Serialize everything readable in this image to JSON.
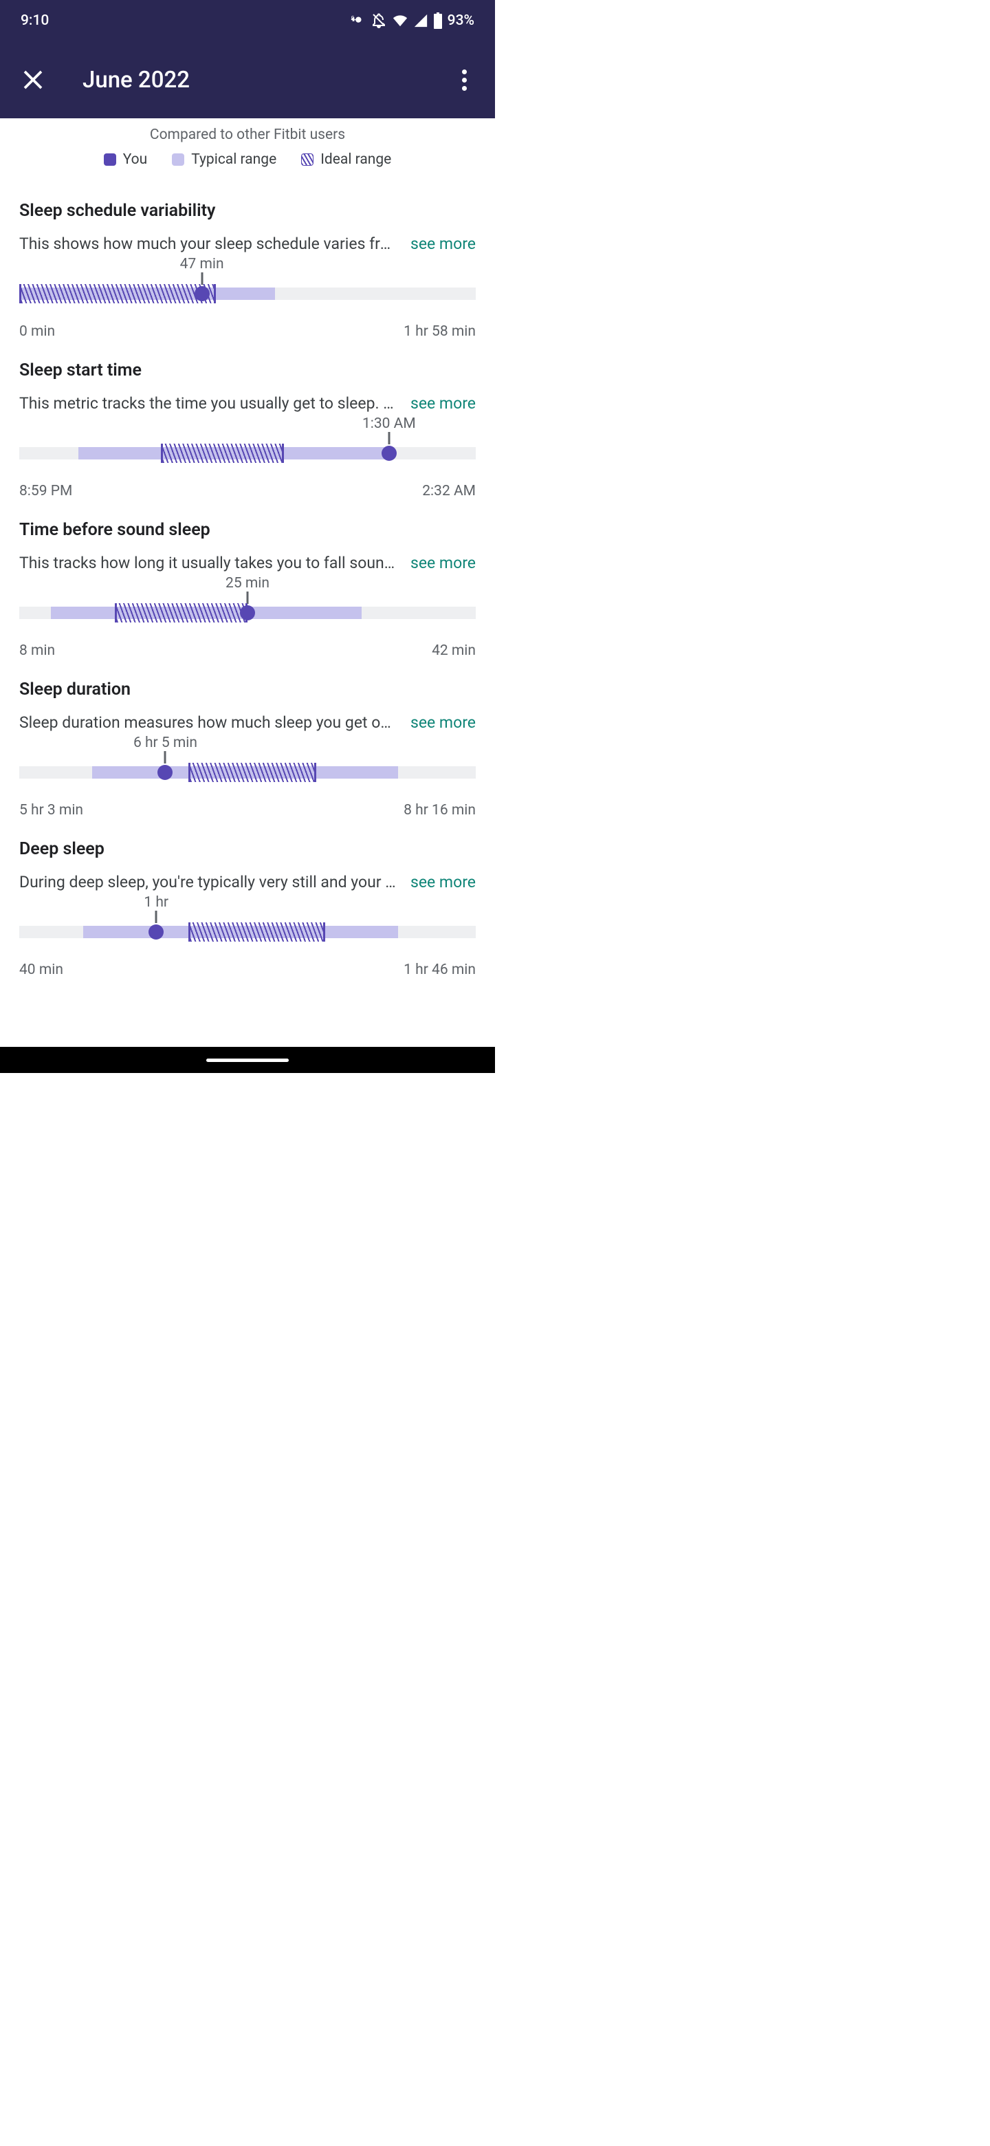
{
  "status": {
    "time": "9:10",
    "battery": "93%"
  },
  "header": {
    "title": "June 2022"
  },
  "compare": {
    "subtitle": "Compared to other Fitbit users",
    "legend_you": "You",
    "legend_typical": "Typical range",
    "legend_ideal": "Ideal range"
  },
  "colors": {
    "you": "#5747b3",
    "typical": "#c5c2ed",
    "track": "#eeeff1",
    "see_more": "#0f8577",
    "header_bg": "#2a2753"
  },
  "metrics": [
    {
      "title": "Sleep schedule variability",
      "description": "This shows how much your sleep schedule varies fro…",
      "see_more": "see more",
      "value_label": "47 min",
      "axis_min": "0 min",
      "axis_max": "1 hr 58 min",
      "typical_start_pct": 0,
      "typical_width_pct": 56,
      "ideal_start_pct": 0,
      "ideal_width_pct": 43,
      "you_pct": 40
    },
    {
      "title": "Sleep start time",
      "description": "This metric tracks the time you usually get to sleep. W…",
      "see_more": "see more",
      "value_label": "1:30 AM",
      "axis_min": "8:59 PM",
      "axis_max": "2:32 AM",
      "typical_start_pct": 13,
      "typical_width_pct": 67,
      "ideal_start_pct": 31,
      "ideal_width_pct": 27,
      "you_pct": 81
    },
    {
      "title": "Time before sound sleep",
      "description": "This tracks how long it usually takes you to fall soundl…",
      "see_more": "see more",
      "value_label": "25 min",
      "axis_min": "8 min",
      "axis_max": "42 min",
      "typical_start_pct": 7,
      "typical_width_pct": 68,
      "ideal_start_pct": 21,
      "ideal_width_pct": 29,
      "you_pct": 50
    },
    {
      "title": "Sleep duration",
      "description": "Sleep duration measures how much sleep you get on …",
      "see_more": "see more",
      "value_label": "6 hr 5 min",
      "axis_min": "5 hr 3 min",
      "axis_max": "8 hr 16 min",
      "typical_start_pct": 16,
      "typical_width_pct": 67,
      "ideal_start_pct": 37,
      "ideal_width_pct": 28,
      "you_pct": 32
    },
    {
      "title": "Deep sleep",
      "description": "During deep sleep, you're typically very still and your h…",
      "see_more": "see more",
      "value_label": "1 hr",
      "axis_min": "40 min",
      "axis_max": "1 hr 46 min",
      "typical_start_pct": 14,
      "typical_width_pct": 69,
      "ideal_start_pct": 37,
      "ideal_width_pct": 30,
      "you_pct": 30
    }
  ]
}
